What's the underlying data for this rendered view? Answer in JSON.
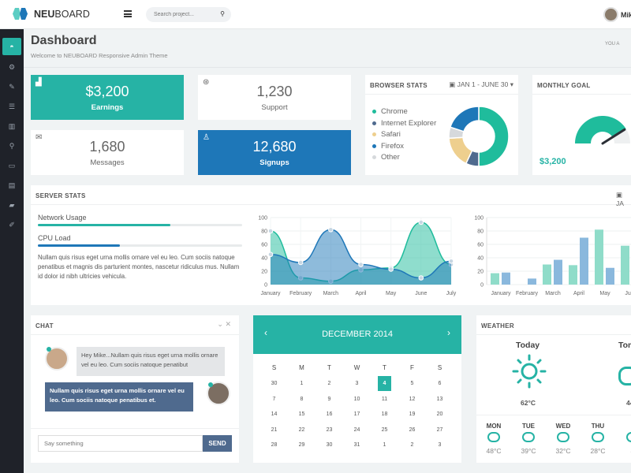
{
  "header": {
    "brand_bold": "NEU",
    "brand_rest": "BOARD",
    "search_placeholder": "Search project...",
    "user": "Mike"
  },
  "page": {
    "title": "Dashboard",
    "subtitle": "Welcome to NEUBOARD Responsive Admin Theme",
    "right_text": "YOU A"
  },
  "sidebar": {
    "items": [
      "dashboard",
      "elements",
      "forms",
      "tables",
      "charts",
      "maps",
      "ui",
      "pages",
      "files",
      "extras"
    ]
  },
  "tiles": [
    {
      "value": "$3,200",
      "label": "Earnings"
    },
    {
      "value": "1,230",
      "label": "Support"
    },
    {
      "value": "1,680",
      "label": "Messages"
    },
    {
      "value": "12,680",
      "label": "Signups"
    }
  ],
  "browser_stats": {
    "title": "BROWSER STATS",
    "range": "JAN 1 - JUNE 30",
    "items": [
      {
        "name": "Chrome",
        "value": 50,
        "color": "#1fbc9c"
      },
      {
        "name": "Internet Explorer",
        "value": 7,
        "color": "#4f6a8e"
      },
      {
        "name": "Safari",
        "value": 17,
        "color": "#eecf8e"
      },
      {
        "name": "Firefox",
        "value": 20,
        "color": "#1e77b8"
      },
      {
        "name": "Other",
        "value": 6,
        "color": "#d6d9dc"
      }
    ]
  },
  "monthly_goal": {
    "title": "MONTHLY GOAL",
    "value": "$3,200",
    "progress": 0.82
  },
  "server_stats": {
    "title": "SERVER STATS",
    "range": "JA",
    "network_label": "Network Usage",
    "network": 0.65,
    "cpu_label": "CPU Load",
    "cpu": 0.4,
    "text": "Nullam quis risus eget urna mollis ornare vel eu leo. Cum sociis natoque penatibus et magnis dis parturient montes, nascetur ridiculus mus. Nullam id dolor id nibh ultricies vehicula."
  },
  "chart_data": [
    {
      "type": "area",
      "categories": [
        "January",
        "February",
        "March",
        "April",
        "May",
        "June",
        "July"
      ],
      "ylim": [
        0,
        100
      ],
      "yticks": [
        "0",
        "20",
        "40",
        "60",
        "80",
        "100"
      ],
      "series": [
        {
          "name": "series1",
          "color": "#1fbc9c",
          "values": [
            80,
            10,
            5,
            22,
            25,
            93,
            30
          ]
        },
        {
          "name": "series2",
          "color": "#1e77b8",
          "values": [
            45,
            33,
            82,
            30,
            23,
            10,
            35
          ]
        }
      ]
    },
    {
      "type": "bar",
      "categories": [
        "January",
        "February",
        "March",
        "April",
        "May",
        "June"
      ],
      "ylim": [
        0,
        100
      ],
      "yticks": [
        "0",
        "20",
        "40",
        "60",
        "80",
        "100"
      ],
      "series": [
        {
          "name": "series1",
          "color": "#8fdcc9",
          "values": [
            17,
            0,
            30,
            29,
            82,
            58
          ]
        },
        {
          "name": "series2",
          "color": "#8ab8dd",
          "values": [
            18,
            9,
            37,
            70,
            25,
            0
          ]
        }
      ]
    }
  ],
  "chat": {
    "title": "CHAT",
    "messages": [
      {
        "text": "Hey Mike...Nullam quis risus eget urna mollis ornare vel eu leo. Cum sociis natoque penatibut"
      },
      {
        "text": "Nullam quis risus eget urna mollis ornare vel eu leo. Cum sociis natoque penatibus et."
      }
    ],
    "placeholder": "Say something",
    "send": "SEND"
  },
  "calendar": {
    "title": "DECEMBER 2014",
    "prev": "‹",
    "next": "›",
    "days": [
      "S",
      "M",
      "T",
      "W",
      "T",
      "F",
      "S"
    ],
    "weeks": [
      [
        "30",
        "1",
        "2",
        "3",
        "4",
        "5",
        "6"
      ],
      [
        "7",
        "8",
        "9",
        "10",
        "11",
        "12",
        "13"
      ],
      [
        "14",
        "15",
        "16",
        "17",
        "18",
        "19",
        "20"
      ],
      [
        "21",
        "22",
        "23",
        "24",
        "25",
        "26",
        "27"
      ],
      [
        "28",
        "29",
        "30",
        "31",
        "1",
        "2",
        "3"
      ]
    ],
    "today": "4"
  },
  "weather": {
    "title": "WEATHER",
    "today": "Today",
    "today_temp": "62°C",
    "tomorrow": "Tom",
    "tomorrow_temp": "44",
    "days": [
      {
        "d": "MON",
        "t": "48°C"
      },
      {
        "d": "TUE",
        "t": "39°C"
      },
      {
        "d": "WED",
        "t": "32°C"
      },
      {
        "d": "THU",
        "t": "28°C"
      },
      {
        "d": "F",
        "t": "4"
      }
    ]
  }
}
